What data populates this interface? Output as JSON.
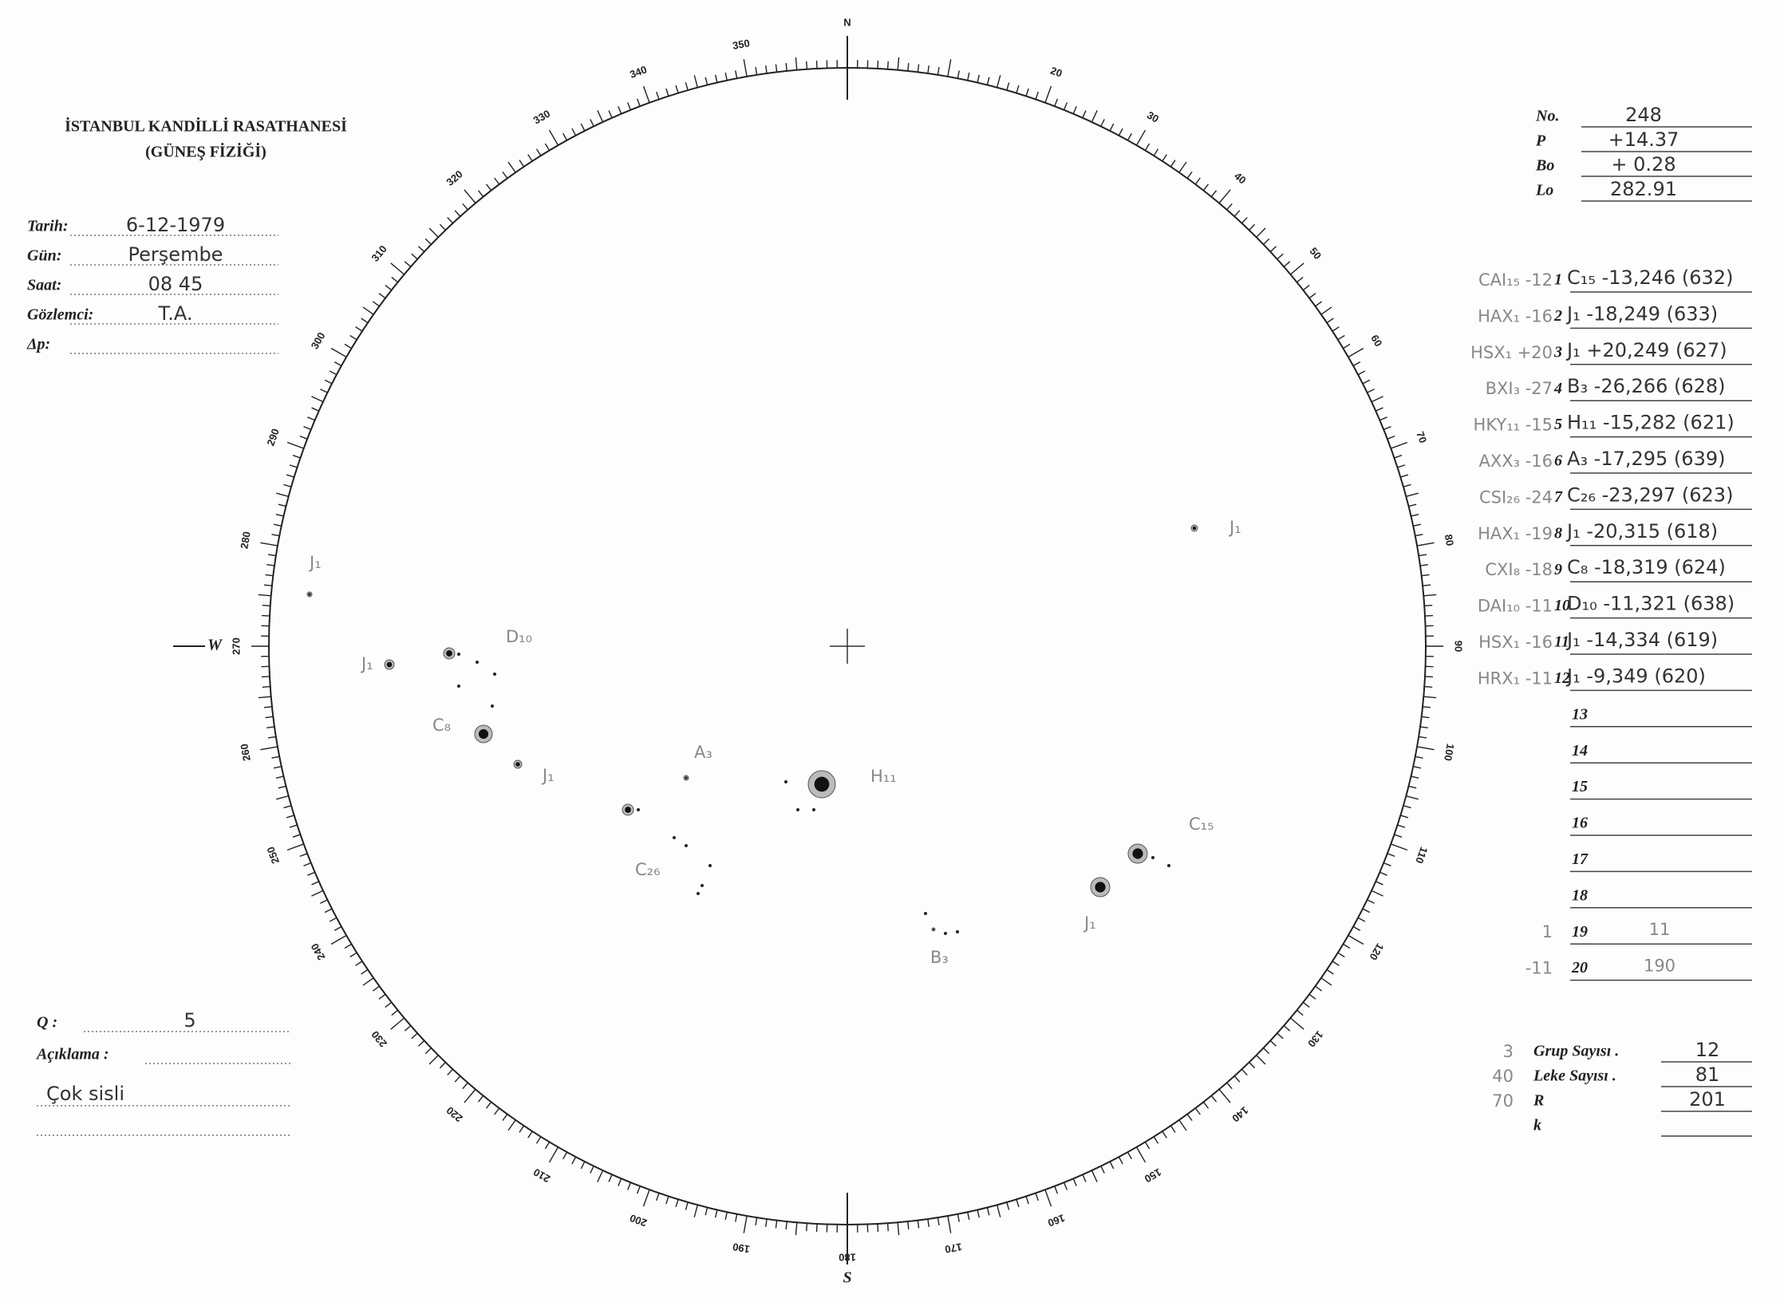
{
  "header": {
    "title": "İSTANBUL KANDİLLİ RASATHANESİ",
    "subtitle": "(GÜNEŞ FİZİĞİ)"
  },
  "fields": [
    {
      "label": "Tarih:",
      "value": "6-12-1979"
    },
    {
      "label": "Gün:",
      "value": "Perşembe"
    },
    {
      "label": "Saat:",
      "value": "08 45"
    },
    {
      "label": "Gözlemci:",
      "value": "T.A."
    },
    {
      "label": "Δp:"
    }
  ],
  "observation": [
    {
      "label": "No.",
      "value": "248"
    },
    {
      "label": "P",
      "value": "+14.37"
    },
    {
      "label": "Bo",
      "value": "+ 0.28"
    },
    {
      "label": "Lo",
      "value": "282.91"
    }
  ],
  "disk": {
    "north": "N",
    "south": "S",
    "west": "W",
    "degree_labels": [
      20,
      30,
      40,
      50,
      60,
      70,
      80,
      90,
      100,
      110,
      120,
      130,
      140,
      150,
      160,
      170,
      180,
      190,
      200,
      210,
      220,
      230,
      240,
      250,
      260,
      270,
      280,
      290,
      300,
      310,
      320,
      330,
      340,
      350
    ]
  },
  "spots": [
    {
      "label": "J₁"
    },
    {
      "label": "J₁"
    },
    {
      "label": "J₁"
    },
    {
      "label": "D₁₀"
    },
    {
      "label": "C₈"
    },
    {
      "label": "J₁"
    },
    {
      "label": "A₃"
    },
    {
      "label": "H₁₁"
    },
    {
      "label": "C₂₆"
    },
    {
      "label": "C₁₅"
    },
    {
      "label": "J₁"
    },
    {
      "label": "B₃"
    }
  ],
  "groups": [
    {
      "note": "CAI₁₅ -12",
      "no": "1",
      "entry": "C₁₅ -13,246 (632)"
    },
    {
      "note": "HAX₁ -16",
      "no": "2",
      "entry": "J₁ -18,249 (633)"
    },
    {
      "note": "HSX₁ +20",
      "no": "3",
      "entry": "J₁ +20,249 (627)"
    },
    {
      "note": "BXI₃ -27",
      "no": "4",
      "entry": "B₃ -26,266 (628)"
    },
    {
      "note": "HKY₁₁ -15",
      "no": "5",
      "entry": "H₁₁ -15,282 (621)"
    },
    {
      "note": "AXX₃ -16",
      "no": "6",
      "entry": "A₃ -17,295 (639)"
    },
    {
      "note": "CSI₂₆ -24",
      "no": "7",
      "entry": "C₂₆ -23,297 (623)"
    },
    {
      "note": "HAX₁ -19",
      "no": "8",
      "entry": "J₁ -20,315 (618)"
    },
    {
      "note": "CXI₈ -18",
      "no": "9",
      "entry": "C₈ -18,319 (624)"
    },
    {
      "note": "DAI₁₀ -11",
      "no": "10",
      "entry": "D₁₀ -11,321 (638)"
    },
    {
      "note": "HSX₁ -16",
      "no": "11",
      "entry": "J₁ -14,334 (619)"
    },
    {
      "note": "HRX₁ -11",
      "no": "12",
      "entry": "J₁ -9,349 (620)"
    },
    {
      "no": "13"
    },
    {
      "no": "14"
    },
    {
      "no": "15"
    },
    {
      "no": "16"
    },
    {
      "no": "17"
    },
    {
      "no": "18"
    },
    {
      "note": "1",
      "no": "19",
      "entry": "11"
    },
    {
      "note": "-11",
      "no": "20",
      "entry": "190"
    }
  ],
  "summary": [
    {
      "note": "3",
      "label": "Grup Sayısı .",
      "value": "12"
    },
    {
      "note": "40",
      "label": "Leke Sayısı .",
      "value": "81"
    },
    {
      "note": "70",
      "label": "R",
      "value": "201"
    },
    {
      "label": "k"
    }
  ],
  "quality": {
    "label": "Q :",
    "value": "5"
  },
  "remarks": {
    "label": "Açıklama :",
    "text": "Çok sisli"
  }
}
